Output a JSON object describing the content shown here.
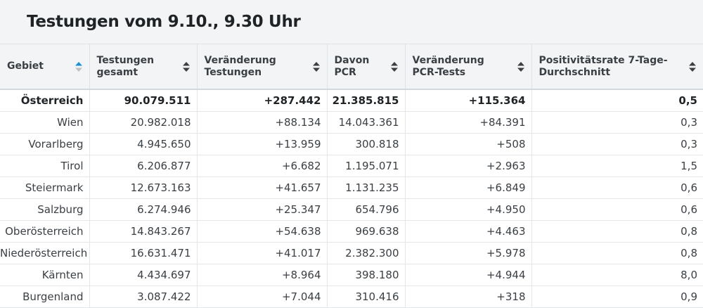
{
  "title": "Testungen vom 9.10., 9.30 Uhr",
  "columns": [
    {
      "label": "Gebiet",
      "sort": "active"
    },
    {
      "label": "Testungen gesamt",
      "sort": "both"
    },
    {
      "label": "Veränderung Testungen",
      "sort": "both"
    },
    {
      "label": "Davon PCR",
      "sort": "both"
    },
    {
      "label": "Veränderung PCR-Tests",
      "sort": "both"
    },
    {
      "label": "Positivitätsrate 7-Tage-Durchschnitt",
      "sort": "both"
    }
  ],
  "rows": [
    [
      "Österreich",
      "90.079.511",
      "+287.442",
      "21.385.815",
      "+115.364",
      "0,5"
    ],
    [
      "Wien",
      "20.982.018",
      "+88.134",
      "14.043.361",
      "+84.391",
      "0,3"
    ],
    [
      "Vorarlberg",
      "4.945.650",
      "+13.959",
      "300.818",
      "+508",
      "0,3"
    ],
    [
      "Tirol",
      "6.206.877",
      "+6.682",
      "1.195.071",
      "+2.963",
      "1,5"
    ],
    [
      "Steiermark",
      "12.673.163",
      "+41.657",
      "1.131.235",
      "+6.849",
      "0,6"
    ],
    [
      "Salzburg",
      "6.274.946",
      "+25.347",
      "654.796",
      "+4.950",
      "0,6"
    ],
    [
      "Oberösterreich",
      "14.843.267",
      "+54.638",
      "969.638",
      "+4.463",
      "0,8"
    ],
    [
      "Niederösterreich",
      "16.631.471",
      "+41.017",
      "2.382.300",
      "+5.978",
      "0,8"
    ],
    [
      "Kärnten",
      "4.434.697",
      "+8.964",
      "398.180",
      "+4.944",
      "8,0"
    ],
    [
      "Burgenland",
      "3.087.422",
      "+7.044",
      "310.416",
      "+318",
      "0,9"
    ]
  ],
  "colors": {
    "sort_active": "#1a8fd6",
    "sort_inactive": "#3a3f44"
  }
}
